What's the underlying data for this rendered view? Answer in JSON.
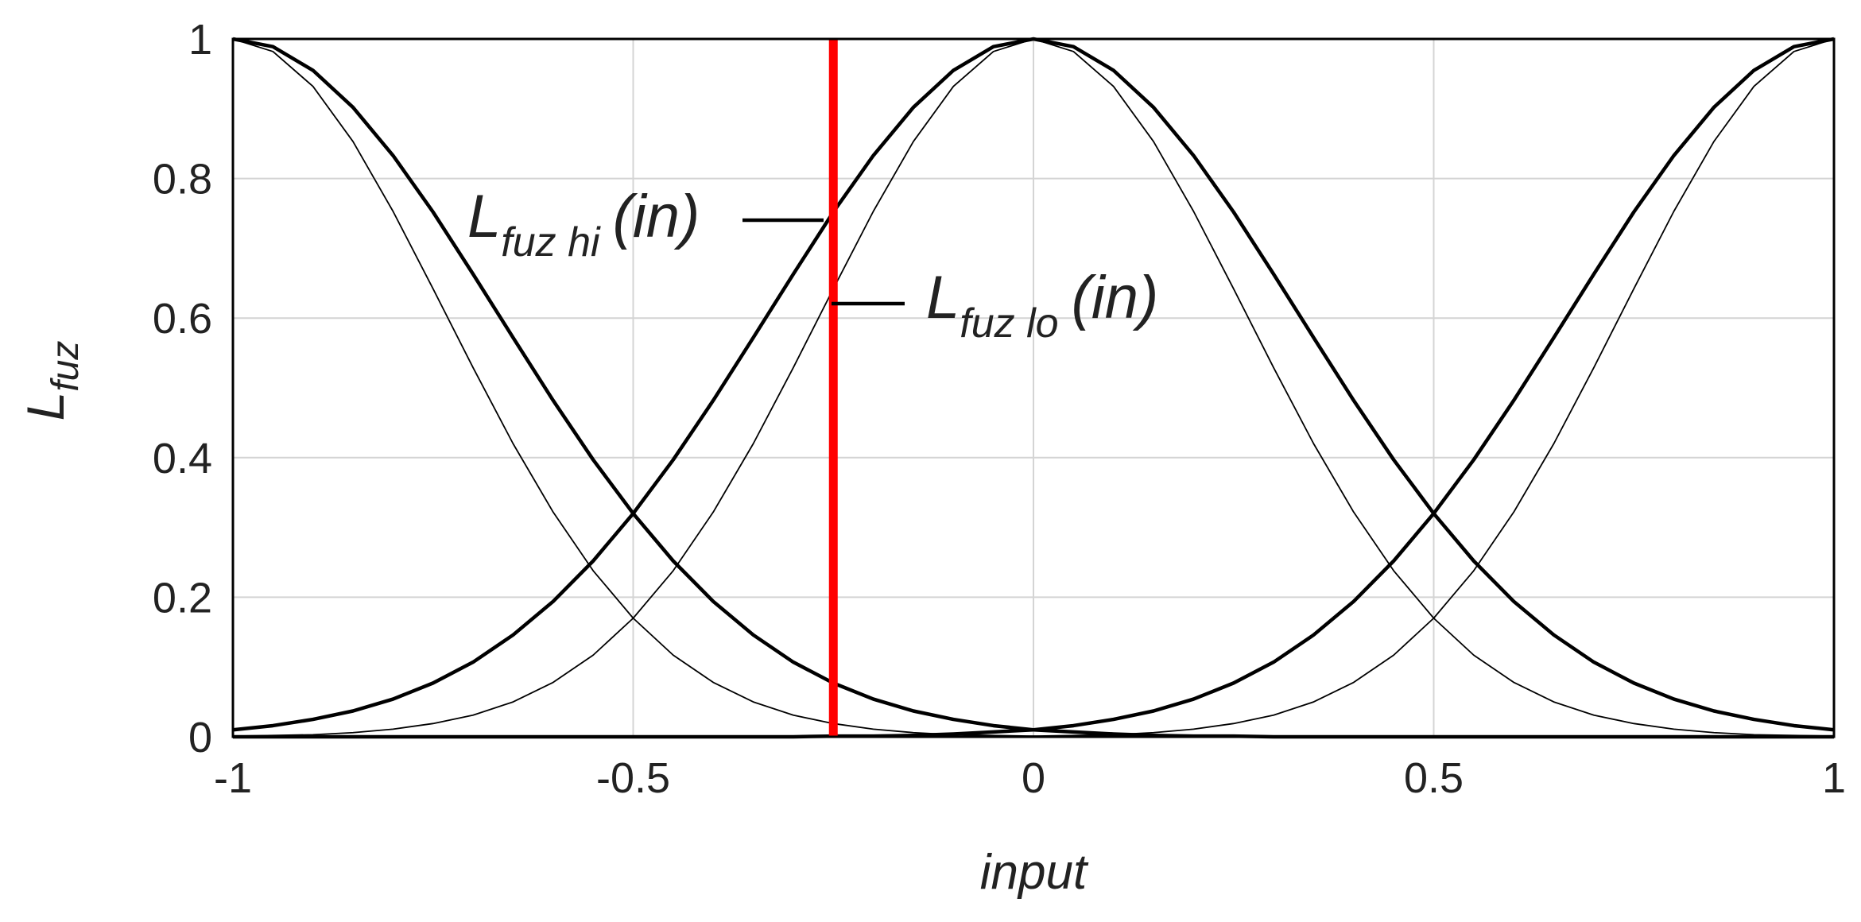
{
  "chart_data": {
    "type": "line",
    "xlabel": "input",
    "ylabel": {
      "main": "L",
      "sub": "fuz"
    },
    "xlim": [
      -1,
      1
    ],
    "ylim": [
      0,
      1
    ],
    "xticks": [
      -1,
      -0.5,
      0,
      0.5,
      1
    ],
    "yticks": [
      0,
      0.2,
      0.4,
      0.6,
      0.8,
      1
    ],
    "grid": true,
    "x": [
      -1,
      -0.95,
      -0.9,
      -0.85,
      -0.8,
      -0.75,
      -0.7,
      -0.65,
      -0.6,
      -0.55,
      -0.5,
      -0.45,
      -0.4,
      -0.35,
      -0.3,
      -0.25,
      -0.2,
      -0.15,
      -0.1,
      -0.05,
      0,
      0.05,
      0.1,
      0.15,
      0.2,
      0.25,
      0.3,
      0.35,
      0.4,
      0.45,
      0.5,
      0.55,
      0.6,
      0.65,
      0.7,
      0.75,
      0.8,
      0.85,
      0.9,
      0.95,
      1
    ],
    "series": [
      {
        "color": "#000000",
        "linewidth": 4.5,
        "values": [
          1,
          0.989,
          0.955,
          0.902,
          0.833,
          0.752,
          0.663,
          0.572,
          0.482,
          0.397,
          0.32,
          0.252,
          0.194,
          0.146,
          0.107,
          0.077,
          0.054,
          0.037,
          0.025,
          0.016,
          0.01,
          0.007,
          0.004,
          0.002,
          0.001,
          0.001,
          0,
          0,
          0,
          0,
          0,
          0,
          0,
          0,
          0,
          0,
          0,
          0,
          0,
          0,
          0
        ]
      },
      {
        "color": "#000000",
        "linewidth": 4.5,
        "values": [
          0.01,
          0.016,
          0.025,
          0.037,
          0.054,
          0.077,
          0.107,
          0.146,
          0.194,
          0.252,
          0.32,
          0.397,
          0.482,
          0.572,
          0.663,
          0.752,
          0.833,
          0.902,
          0.955,
          0.989,
          1,
          0.989,
          0.955,
          0.902,
          0.833,
          0.752,
          0.663,
          0.572,
          0.482,
          0.397,
          0.32,
          0.252,
          0.194,
          0.146,
          0.107,
          0.077,
          0.054,
          0.037,
          0.025,
          0.016,
          0.01
        ]
      },
      {
        "color": "#000000",
        "linewidth": 4.5,
        "values": [
          0,
          0,
          0,
          0,
          0,
          0,
          0,
          0,
          0,
          0,
          0,
          0,
          0,
          0,
          0,
          0.001,
          0.001,
          0.002,
          0.004,
          0.007,
          0.01,
          0.016,
          0.025,
          0.037,
          0.054,
          0.077,
          0.107,
          0.146,
          0.194,
          0.252,
          0.32,
          0.397,
          0.482,
          0.572,
          0.663,
          0.752,
          0.833,
          0.902,
          0.955,
          0.989,
          1
        ]
      },
      {
        "color": "#000000",
        "linewidth": 1.8,
        "values": [
          1,
          0.982,
          0.932,
          0.853,
          0.753,
          0.642,
          0.529,
          0.42,
          0.322,
          0.238,
          0.17,
          0.117,
          0.078,
          0.05,
          0.031,
          0.019,
          0.011,
          0.006,
          0.003,
          0.002,
          0.001,
          0,
          0,
          0,
          0,
          0,
          0,
          0,
          0,
          0,
          0,
          0,
          0,
          0,
          0,
          0,
          0,
          0,
          0,
          0,
          0
        ]
      },
      {
        "color": "#000000",
        "linewidth": 1.8,
        "values": [
          0.001,
          0.002,
          0.003,
          0.006,
          0.011,
          0.019,
          0.031,
          0.05,
          0.078,
          0.117,
          0.17,
          0.238,
          0.322,
          0.42,
          0.529,
          0.642,
          0.753,
          0.853,
          0.932,
          0.982,
          1,
          0.982,
          0.932,
          0.853,
          0.753,
          0.642,
          0.529,
          0.42,
          0.322,
          0.238,
          0.17,
          0.117,
          0.078,
          0.05,
          0.031,
          0.019,
          0.011,
          0.006,
          0.003,
          0.002,
          0.001
        ]
      },
      {
        "color": "#000000",
        "linewidth": 1.8,
        "values": [
          0,
          0,
          0,
          0,
          0,
          0,
          0,
          0,
          0,
          0,
          0,
          0,
          0,
          0,
          0,
          0,
          0,
          0,
          0,
          0,
          0.001,
          0.002,
          0.003,
          0.006,
          0.011,
          0.019,
          0.031,
          0.05,
          0.078,
          0.117,
          0.17,
          0.238,
          0.322,
          0.42,
          0.529,
          0.642,
          0.753,
          0.853,
          0.932,
          0.982,
          1
        ]
      }
    ],
    "vline": {
      "x": -0.25,
      "color": "#ff0000"
    },
    "annotations": [
      {
        "main": "L",
        "sub": "fuz hi",
        "suffix": "(in)"
      },
      {
        "main": "L",
        "sub": "fuz lo",
        "suffix": "(in)"
      }
    ]
  }
}
